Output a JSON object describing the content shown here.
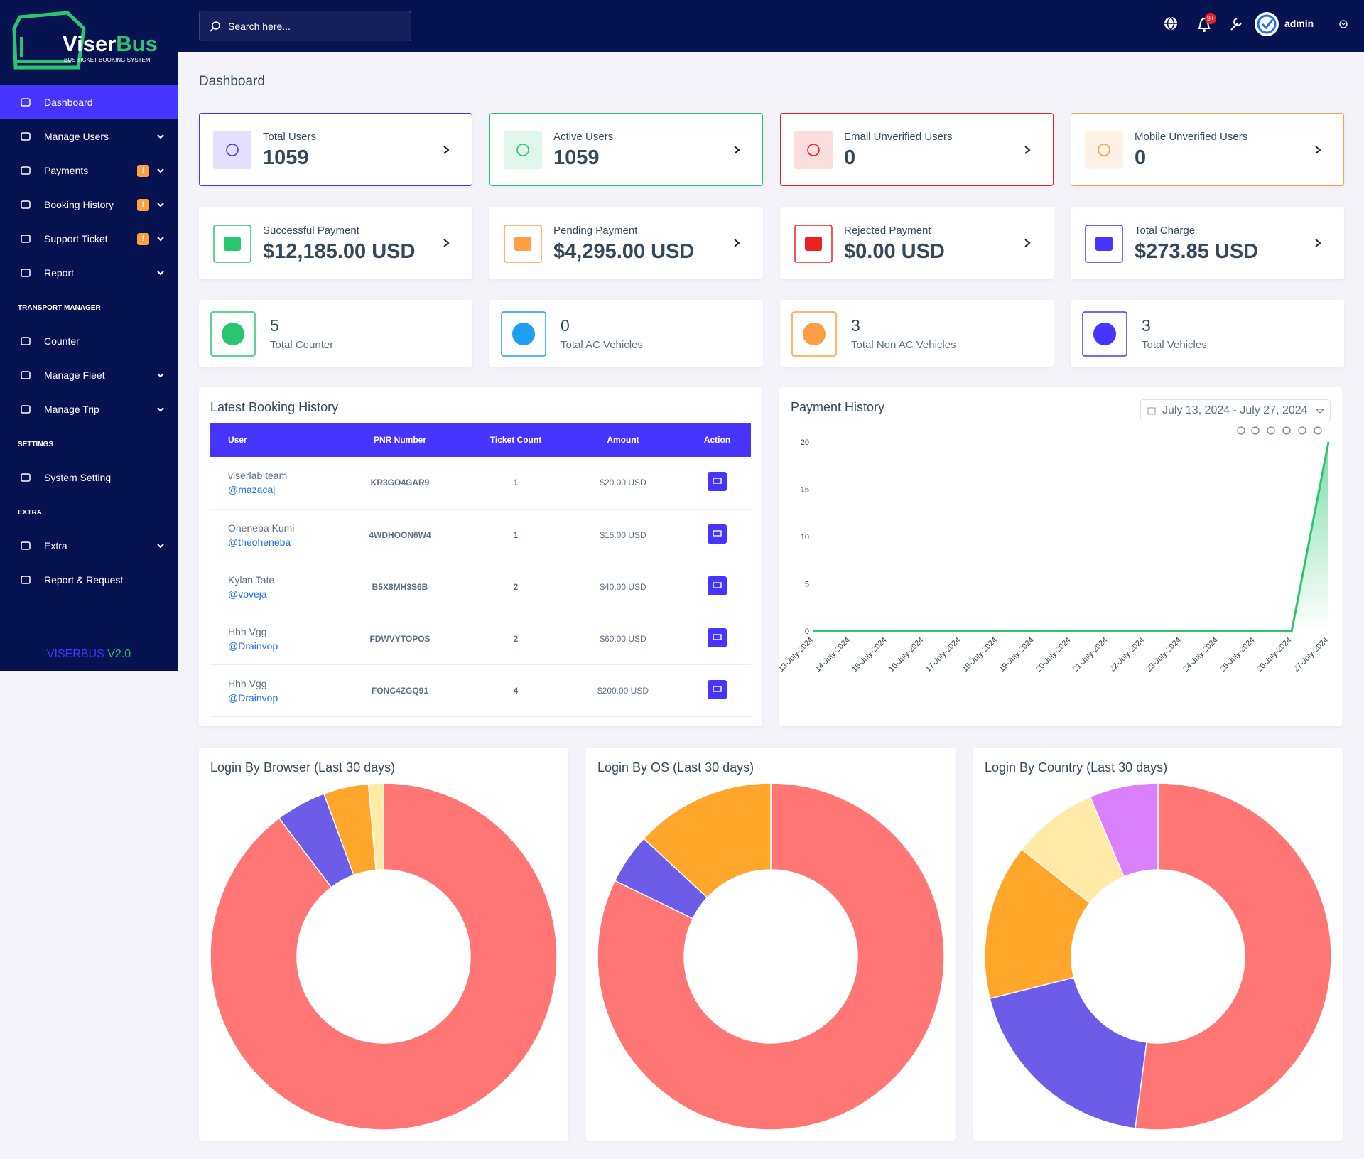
{
  "brand": {
    "name_prefix": "Viser",
    "name_suffix": "Bus",
    "tagline": "BUS TICKET BOOKING SYSTEM"
  },
  "topbar": {
    "search_placeholder": "Search here...",
    "notification_count": "9+",
    "username": "admin"
  },
  "sidebar": {
    "sections": [
      {
        "items": [
          {
            "label": "Dashboard",
            "active": true
          },
          {
            "label": "Manage Users",
            "dropdown": true
          },
          {
            "label": "Payments",
            "badge": "!",
            "dropdown": true
          },
          {
            "label": "Booking History",
            "badge": "!",
            "dropdown": true
          },
          {
            "label": "Support Ticket",
            "badge": "!",
            "dropdown": true
          },
          {
            "label": "Report",
            "dropdown": true
          }
        ]
      },
      {
        "title": "TRANSPORT MANAGER",
        "items": [
          {
            "label": "Counter"
          },
          {
            "label": "Manage Fleet",
            "dropdown": true
          },
          {
            "label": "Manage Trip",
            "dropdown": true
          }
        ]
      },
      {
        "title": "SETTINGS",
        "items": [
          {
            "label": "System Setting"
          }
        ]
      },
      {
        "title": "EXTRA",
        "items": [
          {
            "label": "Extra",
            "dropdown": true
          },
          {
            "label": "Report & Request"
          }
        ]
      }
    ],
    "footer": {
      "name": "VISERBUS",
      "version": "V2.0"
    }
  },
  "page_title": "Dashboard",
  "user_stats": [
    {
      "label": "Total Users",
      "value": 1059,
      "color": "#4634ff"
    },
    {
      "label": "Active Users",
      "value": 1059,
      "color": "#28c76f"
    },
    {
      "label": "Email Unverified Users",
      "value": 0,
      "color": "#eb2222"
    },
    {
      "label": "Mobile Unverified Users",
      "value": 0,
      "color": "#ff9f43"
    }
  ],
  "payment_stats": [
    {
      "label": "Successful Payment",
      "value": "$12,185.00 USD",
      "color": "#28c76f"
    },
    {
      "label": "Pending Payment",
      "value": "$4,295.00 USD",
      "color": "#ff9f43"
    },
    {
      "label": "Rejected Payment",
      "value": "$0.00 USD",
      "color": "#eb2222"
    },
    {
      "label": "Total Charge",
      "value": "$273.85 USD",
      "color": "#4634ff"
    }
  ],
  "fleet_stats": [
    {
      "value": 5,
      "label": "Total Counter",
      "color": "#28c76f"
    },
    {
      "value": 0,
      "label": "Total AC Vehicles",
      "color": "#1e9ff2"
    },
    {
      "value": 3,
      "label": "Total Non AC Vehicles",
      "color": "#ff9f43"
    },
    {
      "value": 3,
      "label": "Total Vehicles",
      "color": "#4634ff"
    }
  ],
  "booking_history": {
    "title": "Latest Booking History",
    "columns": [
      "User",
      "PNR Number",
      "Ticket Count",
      "Amount",
      "Action"
    ],
    "rows": [
      {
        "name": "viserlab team",
        "username": "@mazacaj",
        "pnr": "KR3GO4GAR9",
        "tickets": 1,
        "amount": "$20.00 USD"
      },
      {
        "name": "Oheneba Kumi",
        "username": "@theoheneba",
        "pnr": "4WDHOON6W4",
        "tickets": 1,
        "amount": "$15.00 USD"
      },
      {
        "name": "Kylan Tate",
        "username": "@voveja",
        "pnr": "B5X8MH3S6B",
        "tickets": 2,
        "amount": "$40.00 USD"
      },
      {
        "name": "Hhh Vgg",
        "username": "@Drainvop",
        "pnr": "FDWVYTOPOS",
        "tickets": 2,
        "amount": "$60.00 USD"
      },
      {
        "name": "Hhh Vgg",
        "username": "@Drainvop",
        "pnr": "FONC4ZGQ91",
        "tickets": 4,
        "amount": "$200.00 USD"
      }
    ]
  },
  "payment_history": {
    "date_range": "July 13, 2024 - July 27, 2024",
    "chart_data": {
      "type": "area",
      "title": "Payment History",
      "categories": [
        "13-July-2024",
        "14-July-2024",
        "15-July-2024",
        "16-July-2024",
        "17-July-2024",
        "18-July-2024",
        "19-July-2024",
        "20-July-2024",
        "21-July-2024",
        "22-July-2024",
        "23-July-2024",
        "24-July-2024",
        "25-July-2024",
        "26-July-2024",
        "27-July-2024"
      ],
      "values": [
        0,
        0,
        0,
        0,
        0,
        0,
        0,
        0,
        0,
        0,
        0,
        0,
        0,
        0,
        20
      ],
      "color": "#28c76f",
      "ylim": [
        0,
        20
      ],
      "yticks": [
        0,
        5,
        10,
        15,
        20
      ],
      "grid": false
    }
  },
  "login_charts": [
    {
      "chart_data": {
        "type": "donut",
        "title": "Login By Browser (Last 30 days)",
        "values": [
          89.7,
          4.7,
          4.2,
          1.4
        ],
        "colors": [
          "#ff7675",
          "#6c5ce7",
          "#ffa62b",
          "#ffeaa7"
        ]
      }
    },
    {
      "chart_data": {
        "type": "donut",
        "title": "Login By OS (Last 30 days)",
        "values": [
          82.2,
          4.7,
          13.1
        ],
        "colors": [
          "#ff7675",
          "#6c5ce7",
          "#ffa62b"
        ]
      }
    },
    {
      "chart_data": {
        "type": "donut",
        "title": "Login By Country (Last 30 days)",
        "values": [
          52.1,
          19,
          14.5,
          8,
          6.4
        ],
        "colors": [
          "#ff7675",
          "#6c5ce7",
          "#ffa62b",
          "#ffeaa7",
          "#d980fa"
        ]
      }
    }
  ]
}
